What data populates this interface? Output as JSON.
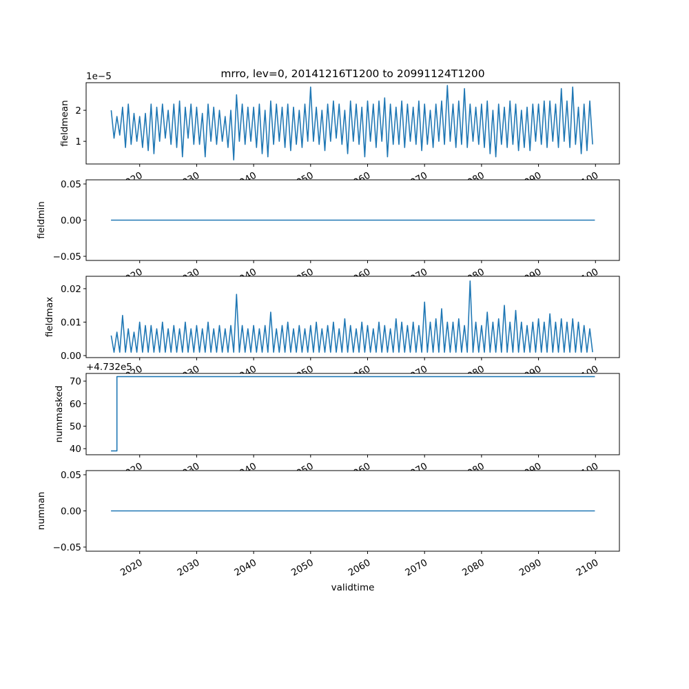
{
  "chart_data": {
    "type": "line",
    "title": "mrro, lev=0, 20141216T1200 to 20991124T1200",
    "xlabel": "validtime",
    "xticks": [
      "2020",
      "2030",
      "2040",
      "2050",
      "2060",
      "2070",
      "2080",
      "2090",
      "2100"
    ],
    "xlim": [
      2010.6,
      2104.2
    ],
    "line_color": "#1f77b4",
    "panels": [
      {
        "ylabel": "fieldmean",
        "offset_text": "1e−5",
        "ylim": [
          0.27,
          2.89
        ],
        "yticks": [
          1,
          2
        ],
        "ytick_labels": [
          "1",
          "2"
        ],
        "x_start": 2015.0,
        "x_step": 0.5,
        "values": [
          2.0,
          1.1,
          1.8,
          1.2,
          2.1,
          0.8,
          2.2,
          0.9,
          1.9,
          1.0,
          1.8,
          0.8,
          1.9,
          0.7,
          2.2,
          0.6,
          2.1,
          1.0,
          2.2,
          1.1,
          2.0,
          0.9,
          2.2,
          0.8,
          2.3,
          0.5,
          2.1,
          1.1,
          2.2,
          0.9,
          2.1,
          0.9,
          1.9,
          0.5,
          2.2,
          1.0,
          2.1,
          0.9,
          2.0,
          1.0,
          1.8,
          0.8,
          2.0,
          0.4,
          2.5,
          1.0,
          2.2,
          0.9,
          2.1,
          1.0,
          2.1,
          0.8,
          2.2,
          0.6,
          2.0,
          0.5,
          2.3,
          0.9,
          2.2,
          1.0,
          2.1,
          0.8,
          2.2,
          0.7,
          2.1,
          0.9,
          2.0,
          0.8,
          2.2,
          1.0,
          2.75,
          1.0,
          2.1,
          0.9,
          2.0,
          0.7,
          2.2,
          1.0,
          2.3,
          1.1,
          2.2,
          0.9,
          2.0,
          0.6,
          2.3,
          1.0,
          2.2,
          0.9,
          2.1,
          0.5,
          2.3,
          1.0,
          2.2,
          0.8,
          2.3,
          1.0,
          2.4,
          0.5,
          2.2,
          0.9,
          2.1,
          0.9,
          2.3,
          0.8,
          2.2,
          1.0,
          2.1,
          0.9,
          2.3,
          0.7,
          2.2,
          0.9,
          2.0,
          0.8,
          2.2,
          1.0,
          2.3,
          0.9,
          2.8,
          1.0,
          2.2,
          0.8,
          2.3,
          0.9,
          2.7,
          0.8,
          2.2,
          1.0,
          2.1,
          0.9,
          2.2,
          0.8,
          2.3,
          0.6,
          2.0,
          0.5,
          2.2,
          0.9,
          2.1,
          0.8,
          2.3,
          0.9,
          2.2,
          0.7,
          2.0,
          0.8,
          2.1,
          0.7,
          2.2,
          1.0,
          2.2,
          0.9,
          2.3,
          0.8,
          2.3,
          1.0,
          2.2,
          0.8,
          2.7,
          1.0,
          2.3,
          0.8,
          2.75,
          0.9,
          2.1,
          0.6,
          2.2,
          0.7,
          2.3,
          0.9
        ]
      },
      {
        "ylabel": "fieldmin",
        "ylim": [
          -0.0557,
          0.0557
        ],
        "yticks": [
          -0.05,
          0,
          0.05
        ],
        "ytick_labels": [
          "−0.05",
          "0.00",
          "0.05"
        ],
        "x": [
          2014.96,
          2099.9
        ],
        "y": [
          0,
          0
        ]
      },
      {
        "ylabel": "fieldmax",
        "ylim": [
          -0.0006,
          0.0237
        ],
        "yticks": [
          0,
          0.01,
          0.02
        ],
        "ytick_labels": [
          "0.00",
          "0.01",
          "0.02"
        ],
        "x_start": 2015.0,
        "x_step": 0.5,
        "value_scale": 0.001,
        "values": [
          6,
          1,
          7,
          1,
          12,
          1,
          8,
          1,
          7,
          1,
          10,
          1,
          9,
          1,
          9,
          1,
          8,
          1,
          10,
          1,
          8,
          1,
          9,
          1,
          8,
          1,
          10,
          1,
          8,
          1,
          9,
          1,
          8,
          1,
          10,
          1,
          8,
          1,
          9,
          1,
          8,
          1,
          9,
          1,
          18.3,
          1,
          9,
          1,
          8,
          1,
          9,
          1,
          8,
          1,
          9,
          1,
          13,
          1,
          8,
          1,
          9,
          1,
          10,
          1,
          8,
          1,
          9,
          1,
          8,
          1,
          9,
          1,
          10,
          1,
          8,
          1,
          9,
          1,
          10,
          1,
          8,
          1,
          11,
          1,
          9,
          1,
          8,
          1,
          10,
          1,
          9,
          1,
          8,
          1,
          10,
          1,
          9,
          1,
          8,
          1,
          11,
          1,
          10,
          1,
          9,
          1,
          10,
          1,
          9,
          1,
          16,
          1,
          10,
          1,
          11,
          1,
          14,
          1,
          10,
          1,
          10,
          1,
          11,
          1,
          9,
          1,
          22.3,
          1,
          10,
          1,
          9,
          1,
          13,
          1,
          10,
          1,
          11,
          1,
          15,
          1,
          10,
          1,
          13.5,
          1,
          10,
          1,
          9,
          1,
          10,
          1,
          11,
          1,
          10,
          1,
          12.5,
          1,
          10,
          1,
          11,
          1,
          10,
          1,
          11,
          1,
          10,
          1,
          9,
          1,
          8,
          1
        ]
      },
      {
        "ylabel": "nummasked",
        "offset_text": "+4.732e5",
        "ylim": [
          37.3,
          73.4
        ],
        "yticks": [
          40,
          50,
          60,
          70
        ],
        "ytick_labels": [
          "40",
          "50",
          "60",
          "70"
        ],
        "x": [
          2014.96,
          2016.0,
          2016.0,
          2099.9
        ],
        "y": [
          39,
          39,
          72,
          72
        ]
      },
      {
        "ylabel": "numnan",
        "ylim": [
          -0.0557,
          0.0557
        ],
        "yticks": [
          -0.05,
          0,
          0.05
        ],
        "ytick_labels": [
          "−0.05",
          "0.00",
          "0.05"
        ],
        "x": [
          2014.96,
          2099.9
        ],
        "y": [
          0,
          0
        ]
      }
    ]
  }
}
